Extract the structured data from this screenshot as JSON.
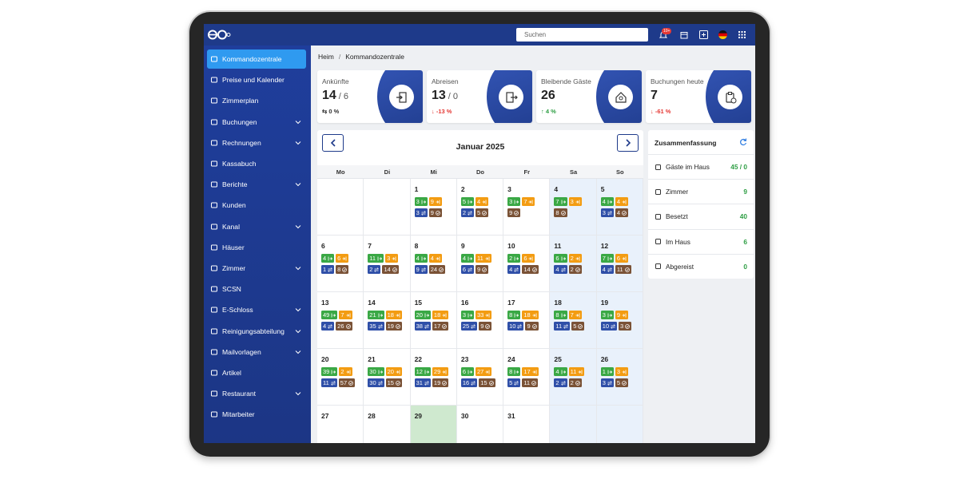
{
  "topbar": {
    "search_placeholder": "Suchen",
    "notification_badge": "10+"
  },
  "sidebar": {
    "items": [
      {
        "label": "Kommandozentrale",
        "active": true
      },
      {
        "label": "Preise und Kalender"
      },
      {
        "label": "Zimmerplan"
      },
      {
        "label": "Buchungen",
        "submenu": true
      },
      {
        "label": "Rechnungen",
        "submenu": true
      },
      {
        "label": "Kassabuch"
      },
      {
        "label": "Berichte",
        "submenu": true
      },
      {
        "label": "Kunden"
      },
      {
        "label": "Kanal",
        "submenu": true
      },
      {
        "label": "Häuser"
      },
      {
        "label": "Zimmer",
        "submenu": true
      },
      {
        "label": "SCSN"
      },
      {
        "label": "E-Schloss",
        "submenu": true
      },
      {
        "label": "Reinigungsabteilung",
        "submenu": true
      },
      {
        "label": "Mailvorlagen",
        "submenu": true
      },
      {
        "label": "Artikel"
      },
      {
        "label": "Restaurant",
        "submenu": true
      },
      {
        "label": "Mitarbeiter"
      }
    ]
  },
  "breadcrumb": {
    "items": [
      "Heim",
      "Kommandozentrale"
    ],
    "separator": "/"
  },
  "stats": [
    {
      "label": "Ankünfte",
      "value": 14,
      "total": "/ 6",
      "change": "⇆ 0 %",
      "change_color": "#333333"
    },
    {
      "label": "Abreisen",
      "value": 13,
      "total": "/ 0",
      "change": "↓ -13 %",
      "change_color": "#e53935"
    },
    {
      "label": "Bleibende Gäste",
      "value": 26,
      "change": "↑ 4 %",
      "change_color": "#2e9e44"
    },
    {
      "label": "Buchungen heute",
      "value": 7,
      "change": "↓ -61 %",
      "change_color": "#e53935"
    }
  ],
  "calendar": {
    "title": "Januar 2025",
    "weekdays": [
      "Mo",
      "Di",
      "Mi",
      "Do",
      "Fr",
      "Sa",
      "So"
    ],
    "weeks": [
      [
        null,
        null,
        {
          "day": 1,
          "in": 3,
          "out": 9,
          "stay": 3,
          "done": 9
        },
        {
          "day": 2,
          "in": 5,
          "out": 4,
          "stay": 2,
          "done": 5
        },
        {
          "day": 3,
          "in": 3,
          "out": 7,
          "done": 9
        },
        {
          "day": 4,
          "in": 7,
          "out": 3,
          "done": 8
        },
        {
          "day": 5,
          "in": 4,
          "out": 4,
          "stay": 3,
          "done": 4
        }
      ],
      [
        {
          "day": 6,
          "in": 4,
          "out": 6,
          "stay": 1,
          "done": 8
        },
        {
          "day": 7,
          "in": 11,
          "out": 3,
          "stay": 2,
          "done": 14
        },
        {
          "day": 8,
          "in": 4,
          "out": 4,
          "stay": 9,
          "done": 24
        },
        {
          "day": 9,
          "in": 4,
          "out": 11,
          "stay": 6,
          "done": 9
        },
        {
          "day": 10,
          "in": 2,
          "out": 6,
          "stay": 4,
          "done": 14
        },
        {
          "day": 11,
          "in": 6,
          "out": 2,
          "stay": 4,
          "done": 2
        },
        {
          "day": 12,
          "in": 7,
          "out": 6,
          "stay": 4,
          "done": 11
        }
      ],
      [
        {
          "day": 13,
          "in": 49,
          "out": 7,
          "stay": 4,
          "done": 26
        },
        {
          "day": 14,
          "in": 21,
          "out": 18,
          "stay": 35,
          "done": 19
        },
        {
          "day": 15,
          "in": 20,
          "out": 18,
          "stay": 38,
          "done": 17
        },
        {
          "day": 16,
          "in": 3,
          "out": 33,
          "stay": 25,
          "done": 9
        },
        {
          "day": 17,
          "in": 8,
          "out": 18,
          "stay": 10,
          "done": 9
        },
        {
          "day": 18,
          "in": 8,
          "out": 7,
          "stay": 11,
          "done": 5
        },
        {
          "day": 19,
          "in": 3,
          "out": 9,
          "stay": 10,
          "done": 3
        }
      ],
      [
        {
          "day": 20,
          "in": 39,
          "out": 2,
          "stay": 11,
          "done": 57
        },
        {
          "day": 21,
          "in": 30,
          "out": 20,
          "stay": 30,
          "done": 15
        },
        {
          "day": 22,
          "in": 12,
          "out": 29,
          "stay": 31,
          "done": 19
        },
        {
          "day": 23,
          "in": 6,
          "out": 27,
          "stay": 16,
          "done": 15
        },
        {
          "day": 24,
          "in": 8,
          "out": 17,
          "stay": 5,
          "done": 11
        },
        {
          "day": 25,
          "in": 4,
          "out": 11,
          "stay": 2,
          "done": 2
        },
        {
          "day": 26,
          "in": 1,
          "out": 3,
          "stay": 3,
          "done": 5
        }
      ],
      [
        {
          "day": 27
        },
        {
          "day": 28
        },
        {
          "day": 29,
          "today": true
        },
        {
          "day": 30
        },
        {
          "day": 31
        },
        null,
        null
      ]
    ]
  },
  "summary": {
    "title": "Zusammenfassung",
    "rows": [
      {
        "label": "Gäste im Haus",
        "value": "45 / 0"
      },
      {
        "label": "Zimmer",
        "value": 9
      },
      {
        "label": "Besetzt",
        "value": 40
      },
      {
        "label": "Im Haus",
        "value": 6
      },
      {
        "label": "Abgereist",
        "value": 0
      }
    ]
  }
}
